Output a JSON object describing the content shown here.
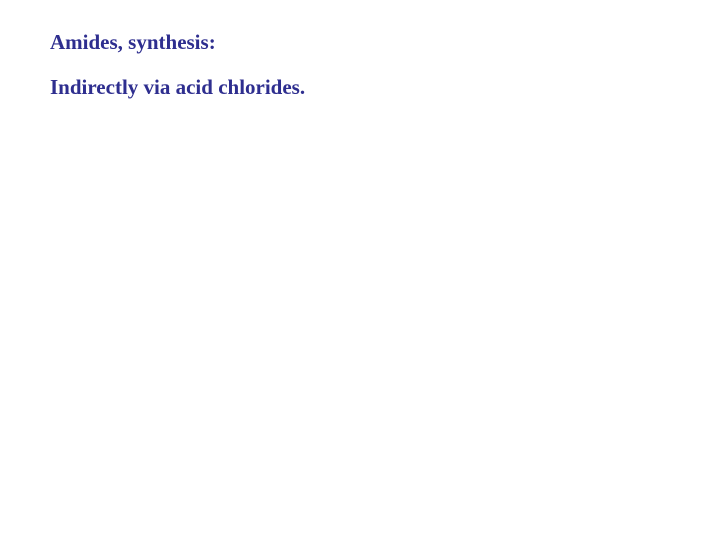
{
  "slide": {
    "title": "Amides, synthesis:",
    "subtitle": "Indirectly via acid chlorides.",
    "text_color": "#2e2e8f",
    "background_color": "#ffffff",
    "title_fontsize": 21,
    "subtitle_fontsize": 21,
    "font_weight": "bold",
    "font_family": "Georgia, Times New Roman, serif"
  }
}
